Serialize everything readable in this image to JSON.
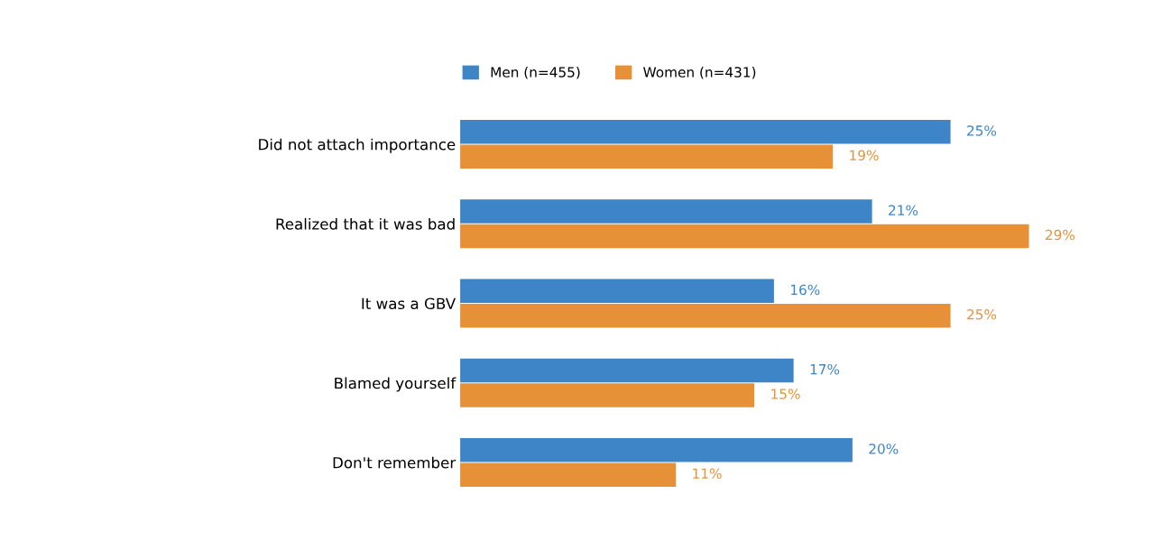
{
  "chart_data": {
    "type": "bar",
    "orientation": "horizontal",
    "categories": [
      "Did not attach importance",
      "Realized that it was bad",
      "It was a GBV",
      "Blamed yourself",
      "Don't remember"
    ],
    "series": [
      {
        "name": "Men (n=455)",
        "color": "#3d85c6",
        "values": [
          25,
          21,
          16,
          17,
          20
        ],
        "value_labels": [
          "25%",
          "21%",
          "16%",
          "17%",
          "20%"
        ]
      },
      {
        "name": "Women (n=431)",
        "color": "#e69138",
        "values": [
          19,
          29,
          25,
          15,
          11
        ],
        "value_labels": [
          "19%",
          "29%",
          "25%",
          "15%",
          "11%"
        ]
      }
    ],
    "legend": "top",
    "grid": false,
    "tick_labels": "y"
  }
}
